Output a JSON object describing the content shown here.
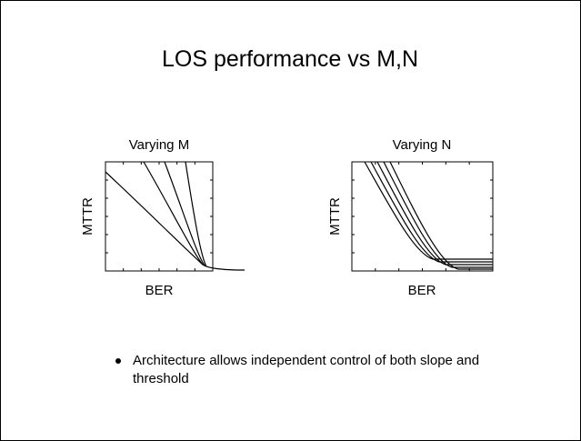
{
  "title": "LOS performance vs M,N",
  "plots": [
    {
      "title": "Varying M",
      "y_label": "MTTR",
      "x_label": "BER"
    },
    {
      "title": "Varying N",
      "y_label": "MTTR",
      "x_label": "BER"
    }
  ],
  "bullets": [
    "Architecture allows independent control of both slope and threshold"
  ]
}
